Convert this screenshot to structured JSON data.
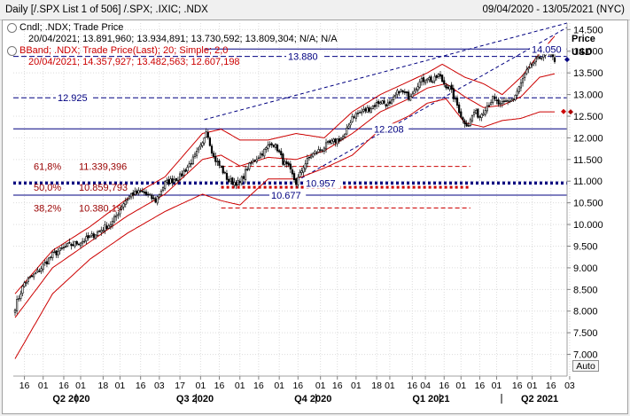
{
  "window": {
    "title": "Daily [/.SPX List 1 of 506] /.SPX; .IXIC; .NDX",
    "date_range": "09/04/2020 - 13/05/2021 (NYC)"
  },
  "legend": {
    "candle_header": "Cndl; .NDX; Trade Price",
    "candle_values": "20/04/2021; 13.891,960; 13.934,891; 13.730,592; 13.809,304; N/A; N/A",
    "bband_header": "BBand; .NDX; Trade Price(Last); 20; Simple; 2,0",
    "bband_values": "20/04/2021; 14.357,927; 13.482,563; 12.607,198"
  },
  "axis": {
    "price_label": "Price",
    "currency_label": "USD",
    "auto_label": "Auto"
  },
  "colors": {
    "candle": "#000000",
    "bband": "#cc0000",
    "annotation_line": "#000080",
    "fib_text": "#990000",
    "highlight_red": "#cc0000",
    "highlight_navy": "#000080"
  },
  "chart_data": {
    "type": "candlestick",
    "ylim": [
      6500,
      14650
    ],
    "y_ticks": [
      "14.500",
      "14.000",
      "13.500",
      "13.000",
      "12.500",
      "12.000",
      "11.500",
      "11.000",
      "10.500",
      "10.000",
      "9.500",
      "9.000",
      "8.500",
      "8.000",
      "7.500",
      "7.000"
    ],
    "y_tick_values": [
      14500,
      14000,
      13500,
      13000,
      12500,
      12000,
      11500,
      11000,
      10500,
      10000,
      9500,
      9000,
      8500,
      8000,
      7500,
      7000
    ],
    "x_ticks": [
      "16",
      "01",
      "16",
      "01",
      "18",
      "01",
      "16",
      "03",
      "17",
      "01",
      "16",
      "01",
      "16",
      "01",
      "16",
      "01",
      "16",
      "01",
      "18",
      "01",
      "16",
      "04",
      "16",
      "01",
      "16",
      "01",
      "16",
      "01",
      "16",
      "03"
    ],
    "x_ticks_trading_index": [
      5,
      15,
      26,
      35,
      47,
      56,
      67,
      77,
      88,
      99,
      109,
      120,
      130,
      141,
      151,
      163,
      172,
      182,
      193,
      200,
      212,
      219,
      229,
      238,
      248,
      257,
      268,
      276,
      286,
      296
    ],
    "quarters": [
      {
        "label": "Q2 2020",
        "center_index": 30
      },
      {
        "label": "Q3 2020",
        "center_index": 96
      },
      {
        "label": "Q4 2020",
        "center_index": 159
      },
      {
        "label": "Q1 2021",
        "center_index": 222
      },
      {
        "label": "Q2 2021",
        "center_index": 280
      }
    ],
    "price_labels": [
      {
        "text": "14.050",
        "value": 14050
      },
      {
        "text": "13.880",
        "value": 13880
      },
      {
        "text": "12.925",
        "value": 12925
      },
      {
        "text": "12.208",
        "value": 12208
      },
      {
        "text": "10.957",
        "value": 10957
      },
      {
        "text": "10.677",
        "value": 10677
      }
    ],
    "horizontal_levels": [
      14050,
      13880,
      12925,
      12208,
      10957,
      10677
    ],
    "fibonacci": [
      {
        "label": "61,8%",
        "value_text": "11.339,396",
        "value": 11339.396
      },
      {
        "label": "50,0%",
        "value_text": "10.859,793",
        "value": 10859.793
      },
      {
        "label": "38,2%",
        "value_text": "10.380,19",
        "value": 10380.19
      }
    ],
    "fib_low": 10677,
    "fib_high": 12208,
    "close_key": [
      [
        0,
        8100
      ],
      [
        5,
        8650
      ],
      [
        12,
        8900
      ],
      [
        20,
        9300
      ],
      [
        28,
        9500
      ],
      [
        35,
        9600
      ],
      [
        40,
        9700
      ],
      [
        45,
        9850
      ],
      [
        52,
        10050
      ],
      [
        58,
        10500
      ],
      [
        62,
        10700
      ],
      [
        68,
        10750
      ],
      [
        75,
        10550
      ],
      [
        80,
        10950
      ],
      [
        88,
        11100
      ],
      [
        95,
        11500
      ],
      [
        100,
        11850
      ],
      [
        102,
        12208
      ],
      [
        106,
        11550
      ],
      [
        110,
        11300
      ],
      [
        114,
        11000
      ],
      [
        117,
        10980
      ],
      [
        120,
        10950
      ],
      [
        124,
        11300
      ],
      [
        128,
        11500
      ],
      [
        133,
        11700
      ],
      [
        137,
        11900
      ],
      [
        140,
        11750
      ],
      [
        143,
        11450
      ],
      [
        146,
        11300
      ],
      [
        150,
        10957
      ],
      [
        154,
        11350
      ],
      [
        158,
        11600
      ],
      [
        162,
        11700
      ],
      [
        167,
        11850
      ],
      [
        172,
        11950
      ],
      [
        176,
        12050
      ],
      [
        180,
        12500
      ],
      [
        185,
        12600
      ],
      [
        190,
        12700
      ],
      [
        195,
        12850
      ],
      [
        200,
        12750
      ],
      [
        205,
        13100
      ],
      [
        210,
        12950
      ],
      [
        215,
        13250
      ],
      [
        220,
        13400
      ],
      [
        223,
        13300
      ],
      [
        226,
        13450
      ],
      [
        229,
        13250
      ],
      [
        232,
        13150
      ],
      [
        236,
        12750
      ],
      [
        239,
        12400
      ],
      [
        242,
        12300
      ],
      [
        245,
        12600
      ],
      [
        248,
        12500
      ],
      [
        251,
        12700
      ],
      [
        255,
        12900
      ],
      [
        259,
        12750
      ],
      [
        263,
        12850
      ],
      [
        266,
        12900
      ],
      [
        269,
        13150
      ],
      [
        272,
        13450
      ],
      [
        276,
        13700
      ],
      [
        280,
        13850
      ],
      [
        283,
        14000
      ],
      [
        285,
        13900
      ],
      [
        288,
        13800
      ]
    ],
    "bband_middle": [
      [
        0,
        7850
      ],
      [
        20,
        9000
      ],
      [
        40,
        9600
      ],
      [
        60,
        10200
      ],
      [
        80,
        10700
      ],
      [
        100,
        11500
      ],
      [
        110,
        11600
      ],
      [
        120,
        11350
      ],
      [
        135,
        11550
      ],
      [
        150,
        11500
      ],
      [
        165,
        11700
      ],
      [
        180,
        12100
      ],
      [
        195,
        12600
      ],
      [
        210,
        12900
      ],
      [
        220,
        13150
      ],
      [
        230,
        13250
      ],
      [
        240,
        12950
      ],
      [
        250,
        12700
      ],
      [
        260,
        12750
      ],
      [
        270,
        12950
      ],
      [
        280,
        13400
      ],
      [
        288,
        13480
      ]
    ],
    "bband_upper": [
      [
        0,
        8400
      ],
      [
        20,
        9400
      ],
      [
        40,
        9950
      ],
      [
        60,
        10600
      ],
      [
        80,
        11100
      ],
      [
        100,
        12100
      ],
      [
        110,
        12200
      ],
      [
        120,
        11950
      ],
      [
        135,
        11950
      ],
      [
        150,
        12100
      ],
      [
        165,
        12000
      ],
      [
        180,
        12600
      ],
      [
        195,
        13000
      ],
      [
        210,
        13300
      ],
      [
        220,
        13500
      ],
      [
        228,
        13700
      ],
      [
        240,
        13400
      ],
      [
        250,
        13250
      ],
      [
        260,
        13000
      ],
      [
        270,
        13400
      ],
      [
        280,
        13950
      ],
      [
        288,
        14350
      ]
    ],
    "bband_lower": [
      [
        0,
        6900
      ],
      [
        20,
        8400
      ],
      [
        40,
        9200
      ],
      [
        60,
        9800
      ],
      [
        80,
        10300
      ],
      [
        100,
        10700
      ],
      [
        110,
        10550
      ],
      [
        120,
        10450
      ],
      [
        135,
        11050
      ],
      [
        150,
        11050
      ],
      [
        165,
        11300
      ],
      [
        180,
        11600
      ],
      [
        195,
        12200
      ],
      [
        210,
        12500
      ],
      [
        220,
        12800
      ],
      [
        230,
        12900
      ],
      [
        240,
        12350
      ],
      [
        250,
        12250
      ],
      [
        260,
        12400
      ],
      [
        270,
        12450
      ],
      [
        280,
        12600
      ],
      [
        288,
        12600
      ]
    ],
    "bband_last": {
      "upper": 14357.927,
      "middle": 13482.563,
      "lower": 12607.198
    }
  }
}
